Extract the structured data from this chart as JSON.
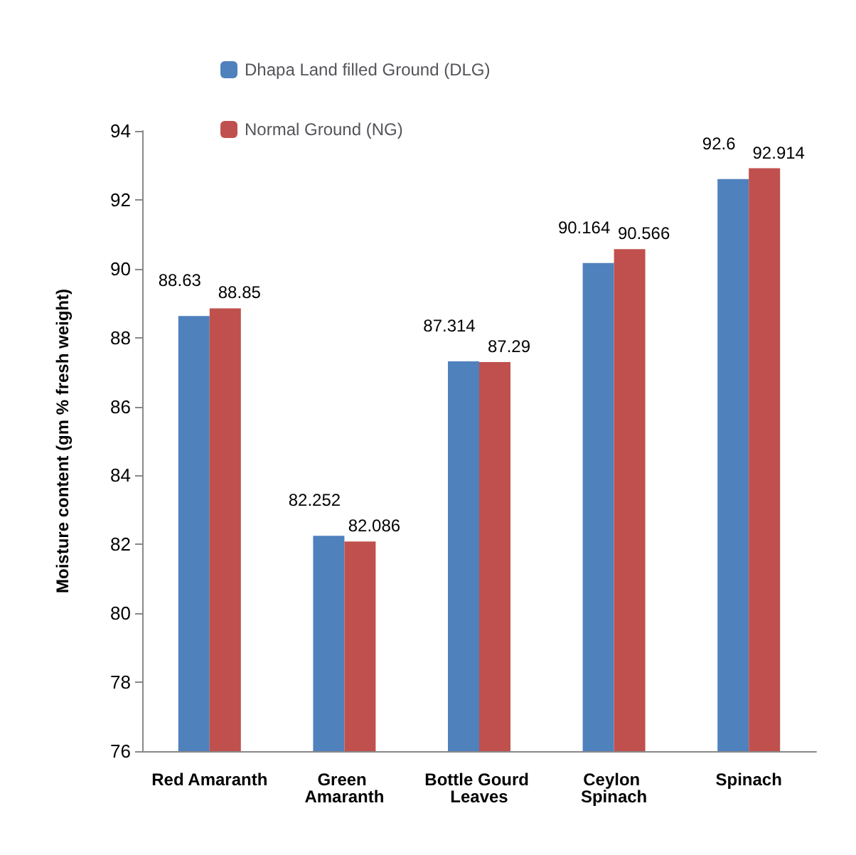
{
  "chart_data": {
    "type": "bar",
    "ylabel": "Moisture content (gm % fresh weight)",
    "categories": [
      "Red Amaranth",
      "Green Amaranth",
      "Bottle Gourd Leaves",
      "Ceylon Spinach",
      "Spinach"
    ],
    "series": [
      {
        "name": "Dhapa Land filled Ground (DLG)",
        "color": "#4f81bd",
        "values": [
          88.63,
          82.252,
          87.314,
          90.164,
          92.6
        ]
      },
      {
        "name": "Normal Ground (NG)",
        "color": "#c0504d",
        "values": [
          88.85,
          82.086,
          87.29,
          90.566,
          92.914
        ]
      }
    ],
    "ylim": [
      76,
      94
    ],
    "yticks": [
      76,
      78,
      80,
      82,
      84,
      86,
      88,
      90,
      92,
      94
    ],
    "grid": false,
    "legend": "top left",
    "data_labels": true
  }
}
